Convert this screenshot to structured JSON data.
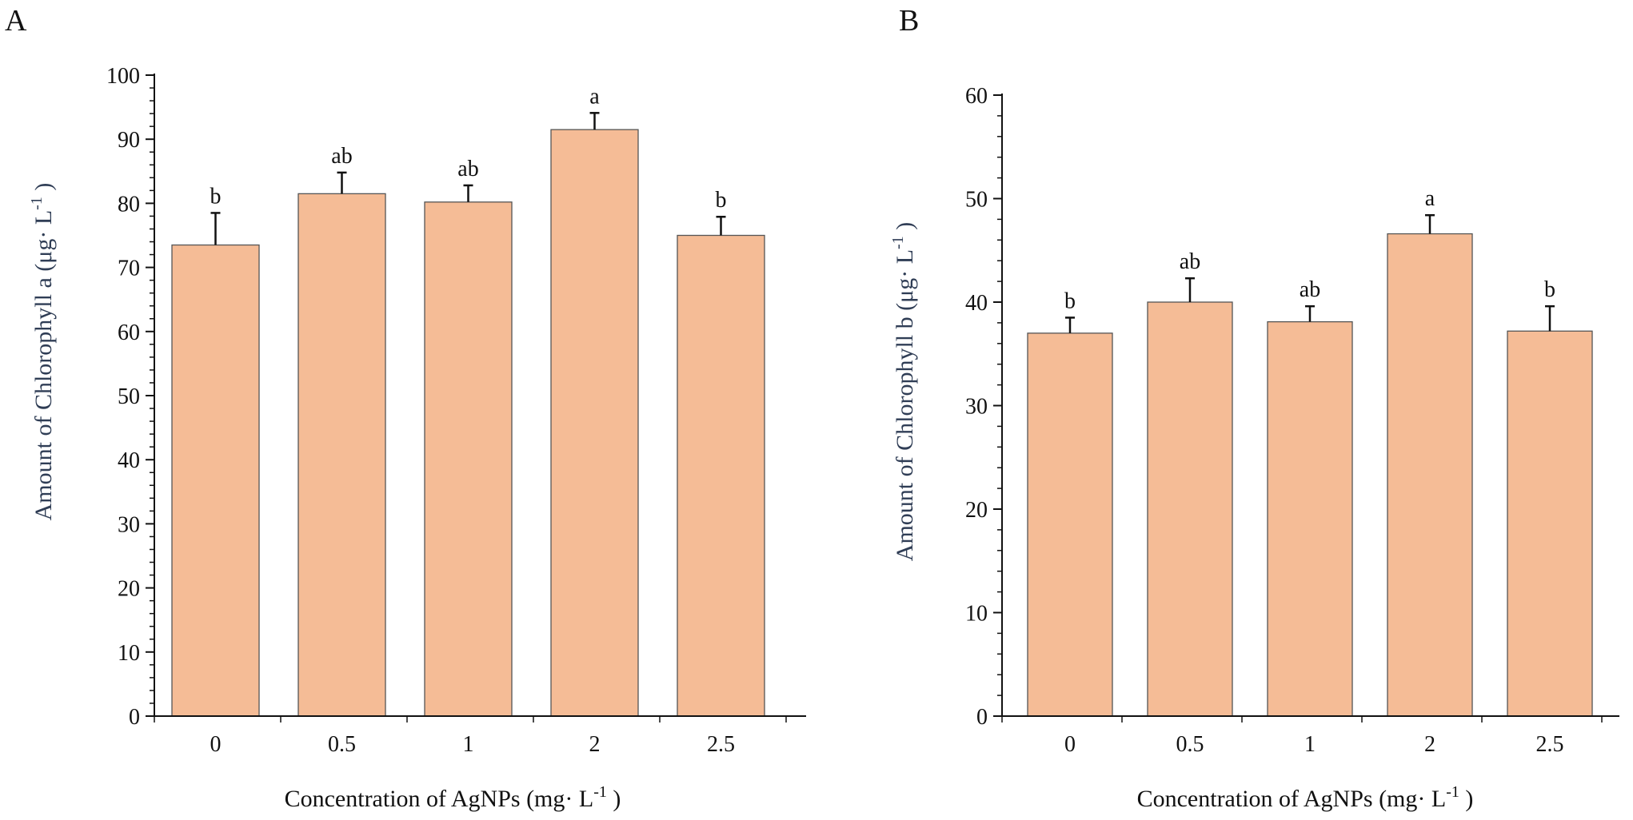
{
  "panels": [
    {
      "panel_label": "A",
      "chart_data": {
        "type": "bar",
        "title": "",
        "categories": [
          "0",
          "0.5",
          "1",
          "2",
          "2.5"
        ],
        "values": [
          73.5,
          81.5,
          80.2,
          91.5,
          75.0
        ],
        "errors": [
          5.0,
          3.3,
          2.6,
          2.6,
          2.9
        ],
        "significance_letters": [
          "b",
          "ab",
          "ab",
          "a",
          "b"
        ],
        "xlabel_main": "Concentration of AgNPs (mg",
        "xlabel_unit": "L",
        "xlabel_exp": "-1",
        "xlabel_close": ")",
        "ylabel_main": "Amount of Chlorophyll a  (μg",
        "ylabel_unit": "L",
        "ylabel_exp": "-1",
        "ylabel_close": ")",
        "ylim": [
          0,
          100
        ],
        "yticks": [
          0,
          10,
          20,
          30,
          40,
          50,
          60,
          70,
          80,
          90,
          100
        ],
        "bar_color": "#F5BC96",
        "edge_color": "#555555"
      }
    },
    {
      "panel_label": "B",
      "chart_data": {
        "type": "bar",
        "title": "",
        "categories": [
          "0",
          "0.5",
          "1",
          "2",
          "2.5"
        ],
        "values": [
          37.0,
          40.0,
          38.1,
          46.6,
          37.2
        ],
        "errors": [
          1.5,
          2.3,
          1.5,
          1.8,
          2.4
        ],
        "significance_letters": [
          "b",
          "ab",
          "ab",
          "a",
          "b"
        ],
        "xlabel_main": "Concentration of AgNPs (mg",
        "xlabel_unit": "L",
        "xlabel_exp": "-1",
        "xlabel_close": ")",
        "ylabel_main": "Amount of Chlorophyll b (μg",
        "ylabel_unit": "L",
        "ylabel_exp": "-1",
        "ylabel_close": ")",
        "ylim": [
          0,
          60
        ],
        "yticks": [
          0,
          10,
          20,
          30,
          40,
          50,
          60
        ],
        "bar_color": "#F5BC96",
        "edge_color": "#555555"
      }
    }
  ]
}
